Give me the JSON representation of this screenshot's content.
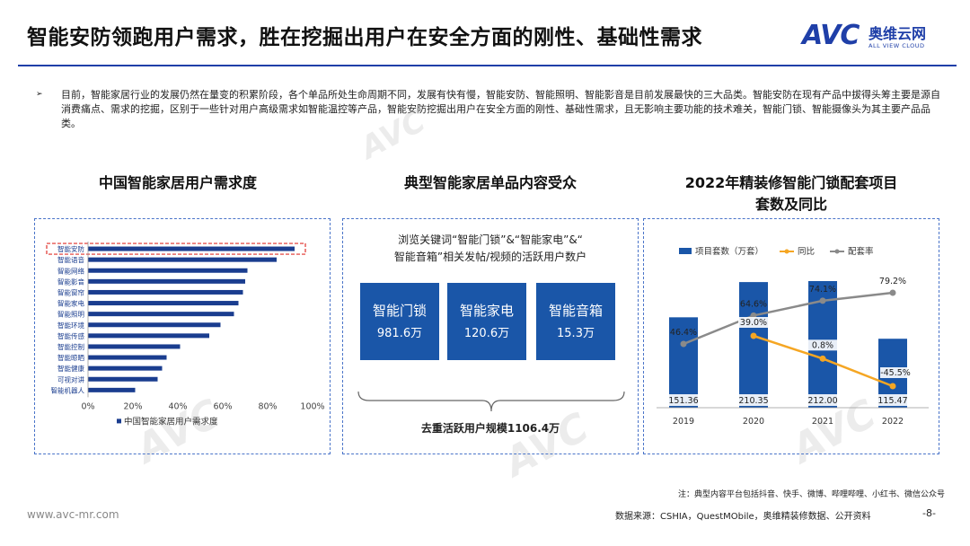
{
  "header": {
    "title": "智能安防领跑用户需求，胜在挖掘出用户在安全方面的刚性、基础性需求",
    "logo_mark": "AVC",
    "logo_cn": "奥维云网",
    "logo_en": "ALL VIEW CLOUD",
    "accent_color": "#1f3fa8"
  },
  "intro": {
    "bullet": "➢",
    "text": "目前，智能家居行业的发展仍然在量变的积累阶段，各个单品所处生命周期不同，发展有快有慢，智能安防、智能照明、智能影音是目前发展最快的三大品类。智能安防在现有产品中拔得头筹主要是源自消费痛点、需求的挖掘，区别于一些针对用户高级需求如智能温控等产品，智能安防挖掘出用户在安全方面的刚性、基础性需求，且无影响主要功能的技术难关，智能门锁、智能摄像头为其主要产品品类。"
  },
  "panels": {
    "left_title": "中国智能家居用户需求度",
    "middle_title": "典型智能家居单品内容受众",
    "right_title_line1": "2022年精装修智能门锁配套项目",
    "right_title_line2": "套数及同比"
  },
  "middle": {
    "caption_line1": "浏览关键词“智能门锁”&“智能家电”&“",
    "caption_line2": "智能音箱”相关发帖/视频的活跃用户数户",
    "cards": [
      {
        "name": "智能门锁",
        "value": "981.6万"
      },
      {
        "name": "智能家电",
        "value": "120.6万"
      },
      {
        "name": "智能音箱",
        "value": "15.3万"
      }
    ],
    "dedup_label": "去重活跃用户规模1106.4万",
    "card_color": "#1a56a8"
  },
  "chart_data": [
    {
      "type": "bar",
      "orientation": "horizontal",
      "title": "中国智能家居用户需求度",
      "categories": [
        "智能安防",
        "智能语音",
        "智能网络",
        "智能影音",
        "智能窗帘",
        "智能家电",
        "智能照明",
        "智能环境",
        "智能传感",
        "智能控制",
        "智能晾晒",
        "智能健康",
        "可视对讲",
        "智能机器人"
      ],
      "series": [
        {
          "name": "中国智能家居用户需求度",
          "values": [
            0.92,
            0.84,
            0.71,
            0.7,
            0.69,
            0.67,
            0.65,
            0.59,
            0.54,
            0.41,
            0.35,
            0.33,
            0.31,
            0.21
          ]
        }
      ],
      "xlim": [
        0,
        1
      ],
      "xticks": [
        "0%",
        "20%",
        "40%",
        "60%",
        "80%",
        "100%"
      ],
      "highlight": "智能安防",
      "highlight_color": "#e0312b",
      "bar_color": "#1a3d8f",
      "legend_position": "bottom"
    },
    {
      "type": "bar+line",
      "title": "2022年精装修智能门锁配套项目套数及同比",
      "categories": [
        "2019",
        "2020",
        "2021",
        "2022"
      ],
      "series": [
        {
          "name": "项目套数（万套）",
          "type": "bar",
          "values": [
            151.36,
            210.35,
            212.0,
            115.47
          ],
          "labels": [
            "151.36",
            "210.35",
            "212.00",
            "115.47"
          ],
          "color": "#1a56a8"
        },
        {
          "name": "同比",
          "type": "line",
          "values": [
            null,
            39.0,
            0.8,
            -45.5
          ],
          "labels": [
            "",
            "39.0%",
            "0.8%",
            "-45.5%"
          ],
          "color": "#f5a623"
        },
        {
          "name": "配套率",
          "type": "line",
          "values": [
            46.4,
            64.6,
            74.1,
            79.2
          ],
          "labels": [
            "46.4%",
            "64.6%",
            "74.1%",
            "79.2%"
          ],
          "color": "#8a8a8a"
        }
      ],
      "legend_position": "top"
    }
  ],
  "footer": {
    "note": "注：典型内容平台包括抖音、快手、微博、哔哩哔哩、小红书、微信公众号",
    "source": "数据来源：CSHIA，QuestMObile，奥维精装修数据、公开资料",
    "page": "-8-",
    "website": "www.avc-mr.com"
  }
}
